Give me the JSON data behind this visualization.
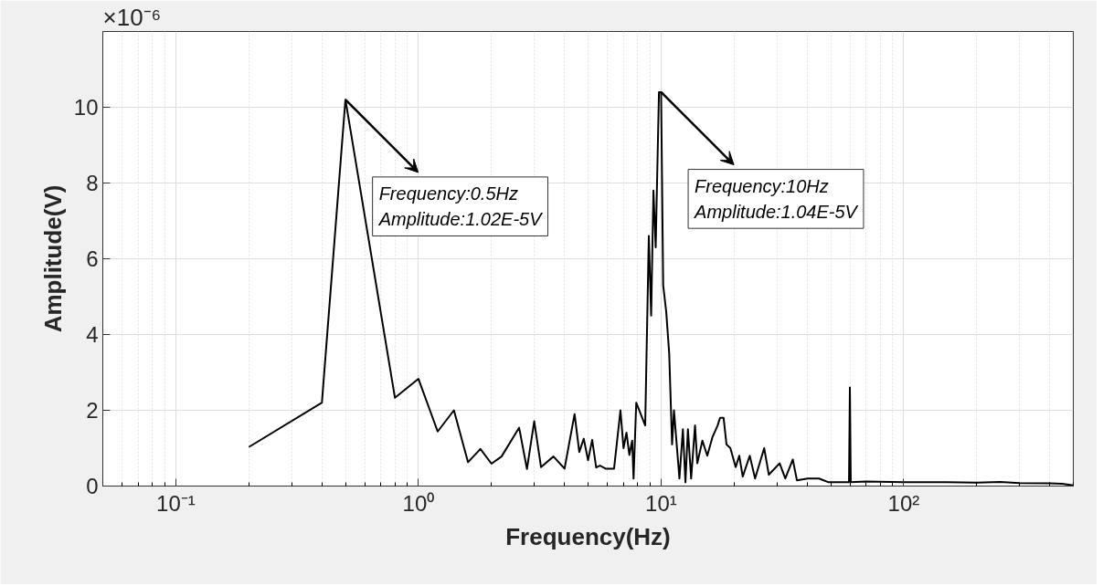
{
  "chart_data": {
    "type": "line",
    "xlabel": "Frequency(Hz)",
    "ylabel": "Amplitude(V)",
    "log": "x",
    "grid": true,
    "xlim": [
      0.05,
      500
    ],
    "ylim": [
      0,
      12
    ],
    "xticks": [
      {
        "value": 0.1,
        "label": "10⁻¹"
      },
      {
        "value": 1,
        "label": "10⁰"
      },
      {
        "value": 10,
        "label": "10¹"
      },
      {
        "value": 100,
        "label": "10²"
      }
    ],
    "yticks": [
      0,
      2,
      4,
      6,
      8,
      10
    ],
    "series": [
      {
        "color": "#000000",
        "x": [
          0.2,
          0.4,
          0.5,
          0.8,
          1.0,
          1.2,
          1.4,
          1.6,
          1.8,
          2.0,
          2.2,
          2.6,
          2.8,
          3.0,
          3.2,
          3.6,
          4.0,
          4.4,
          4.6,
          4.8,
          5.0,
          5.2,
          5.4,
          5.6,
          5.9,
          6.4,
          6.8,
          7.0,
          7.2,
          7.4,
          7.6,
          7.7,
          7.9,
          8.6,
          8.9,
          9.1,
          9.3,
          9.5,
          9.8,
          10.0,
          10.2,
          10.5,
          10.8,
          11.1,
          11.3,
          11.9,
          12.3,
          12.6,
          12.9,
          13.3,
          13.8,
          14.1,
          14.8,
          15.5,
          16.3,
          17.1,
          17.5,
          18.1,
          18.6,
          19.3,
          20.3,
          21.0,
          21.7,
          23.2,
          24.4,
          26.6,
          27.8,
          30.8,
          32.5,
          34.9,
          36.3,
          40.2,
          44.8,
          49.0,
          58.9,
          59.5,
          60.0,
          60.5,
          70,
          100,
          150,
          200,
          250,
          300,
          400,
          450,
          500
        ],
        "values": [
          1.03,
          2.2,
          10.2,
          2.33,
          2.83,
          1.44,
          2.0,
          0.63,
          0.98,
          0.59,
          0.78,
          1.54,
          0.45,
          1.71,
          0.5,
          0.78,
          0.46,
          1.9,
          0.9,
          1.25,
          0.68,
          1.22,
          0.49,
          0.54,
          0.46,
          0.46,
          2.0,
          1.0,
          1.41,
          0.82,
          1.2,
          0.2,
          2.2,
          1.6,
          6.6,
          4.5,
          7.8,
          6.3,
          10.4,
          10.4,
          5.3,
          4.6,
          3.5,
          1.1,
          2.0,
          0.2,
          1.5,
          0.1,
          1.5,
          0.2,
          1.6,
          0.6,
          1.2,
          0.8,
          1.3,
          1.6,
          1.8,
          1.8,
          1.1,
          1.0,
          0.5,
          0.8,
          0.25,
          0.8,
          0.2,
          1.0,
          0.3,
          0.6,
          0.2,
          0.7,
          0.15,
          0.2,
          0.2,
          0.1,
          0.1,
          0.1,
          2.6,
          0.1,
          0.12,
          0.1,
          0.1,
          0.09,
          0.11,
          0.08,
          0.07,
          0.06,
          0.02
        ]
      }
    ],
    "annotations": [
      "×10⁻⁶",
      {
        "text": "Frequency:0.5Hz\nAmplitude:1.02E-5V",
        "x": 0.5,
        "y": 10.2
      },
      {
        "text": "Frequency:10Hz\nAmplitude:1.04E-5V",
        "x": 10,
        "y": 10.4
      }
    ]
  }
}
